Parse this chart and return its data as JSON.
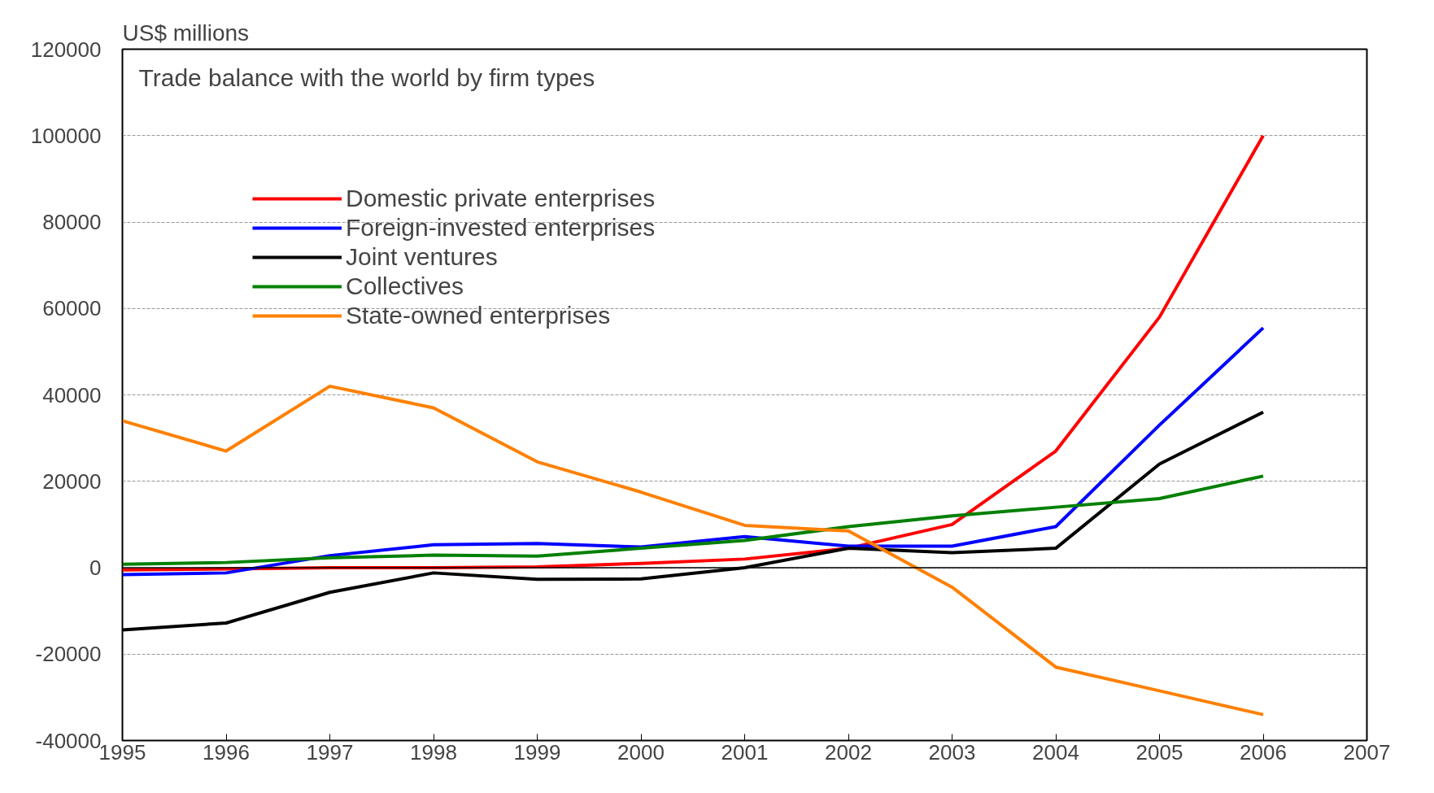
{
  "chart_data": {
    "type": "line",
    "title": "Trade balance with the world by firm types",
    "ylabel": "US$ millions",
    "x": [
      1995,
      1996,
      1997,
      1998,
      1999,
      2000,
      2001,
      2002,
      2003,
      2004,
      2005,
      2006
    ],
    "series": [
      {
        "name": "Domestic private enterprises",
        "color": "#ff0000",
        "values": [
          -500,
          -300,
          0,
          0,
          200,
          1000,
          2000,
          4500,
          10000,
          27000,
          58000,
          100000
        ]
      },
      {
        "name": "Foreign-invested enterprises",
        "color": "#0000ff",
        "values": [
          -1600,
          -1200,
          2800,
          5300,
          5600,
          4800,
          7200,
          5000,
          5000,
          9500,
          33000,
          55500
        ]
      },
      {
        "name": "Joint ventures",
        "color": "#000000",
        "values": [
          -14400,
          -12800,
          -5700,
          -1200,
          -2700,
          -2600,
          0,
          4500,
          3500,
          4500,
          24000,
          36000
        ]
      },
      {
        "name": "Collectives",
        "color": "#008000",
        "values": [
          800,
          1200,
          2300,
          2900,
          2700,
          4500,
          6300,
          9500,
          12000,
          14000,
          16000,
          21200
        ]
      },
      {
        "name": "State-owned enterprises",
        "color": "#ff8000",
        "values": [
          34000,
          27000,
          42000,
          37000,
          24500,
          17500,
          9800,
          8500,
          -4500,
          -23000,
          -28500,
          -34000
        ]
      }
    ],
    "xlim": [
      1995,
      2007
    ],
    "xticks": [
      1995,
      1996,
      1997,
      1998,
      1999,
      2000,
      2001,
      2002,
      2003,
      2004,
      2005,
      2006,
      2007
    ],
    "ylim": [
      -40000,
      120000
    ],
    "yticks": [
      -40000,
      -20000,
      0,
      20000,
      40000,
      60000,
      80000,
      100000,
      120000
    ],
    "ref_lines": [
      {
        "axis": "y",
        "value": 0,
        "color": "#000000"
      }
    ],
    "grid": "y",
    "legend": "top left",
    "line_style": "solid"
  }
}
